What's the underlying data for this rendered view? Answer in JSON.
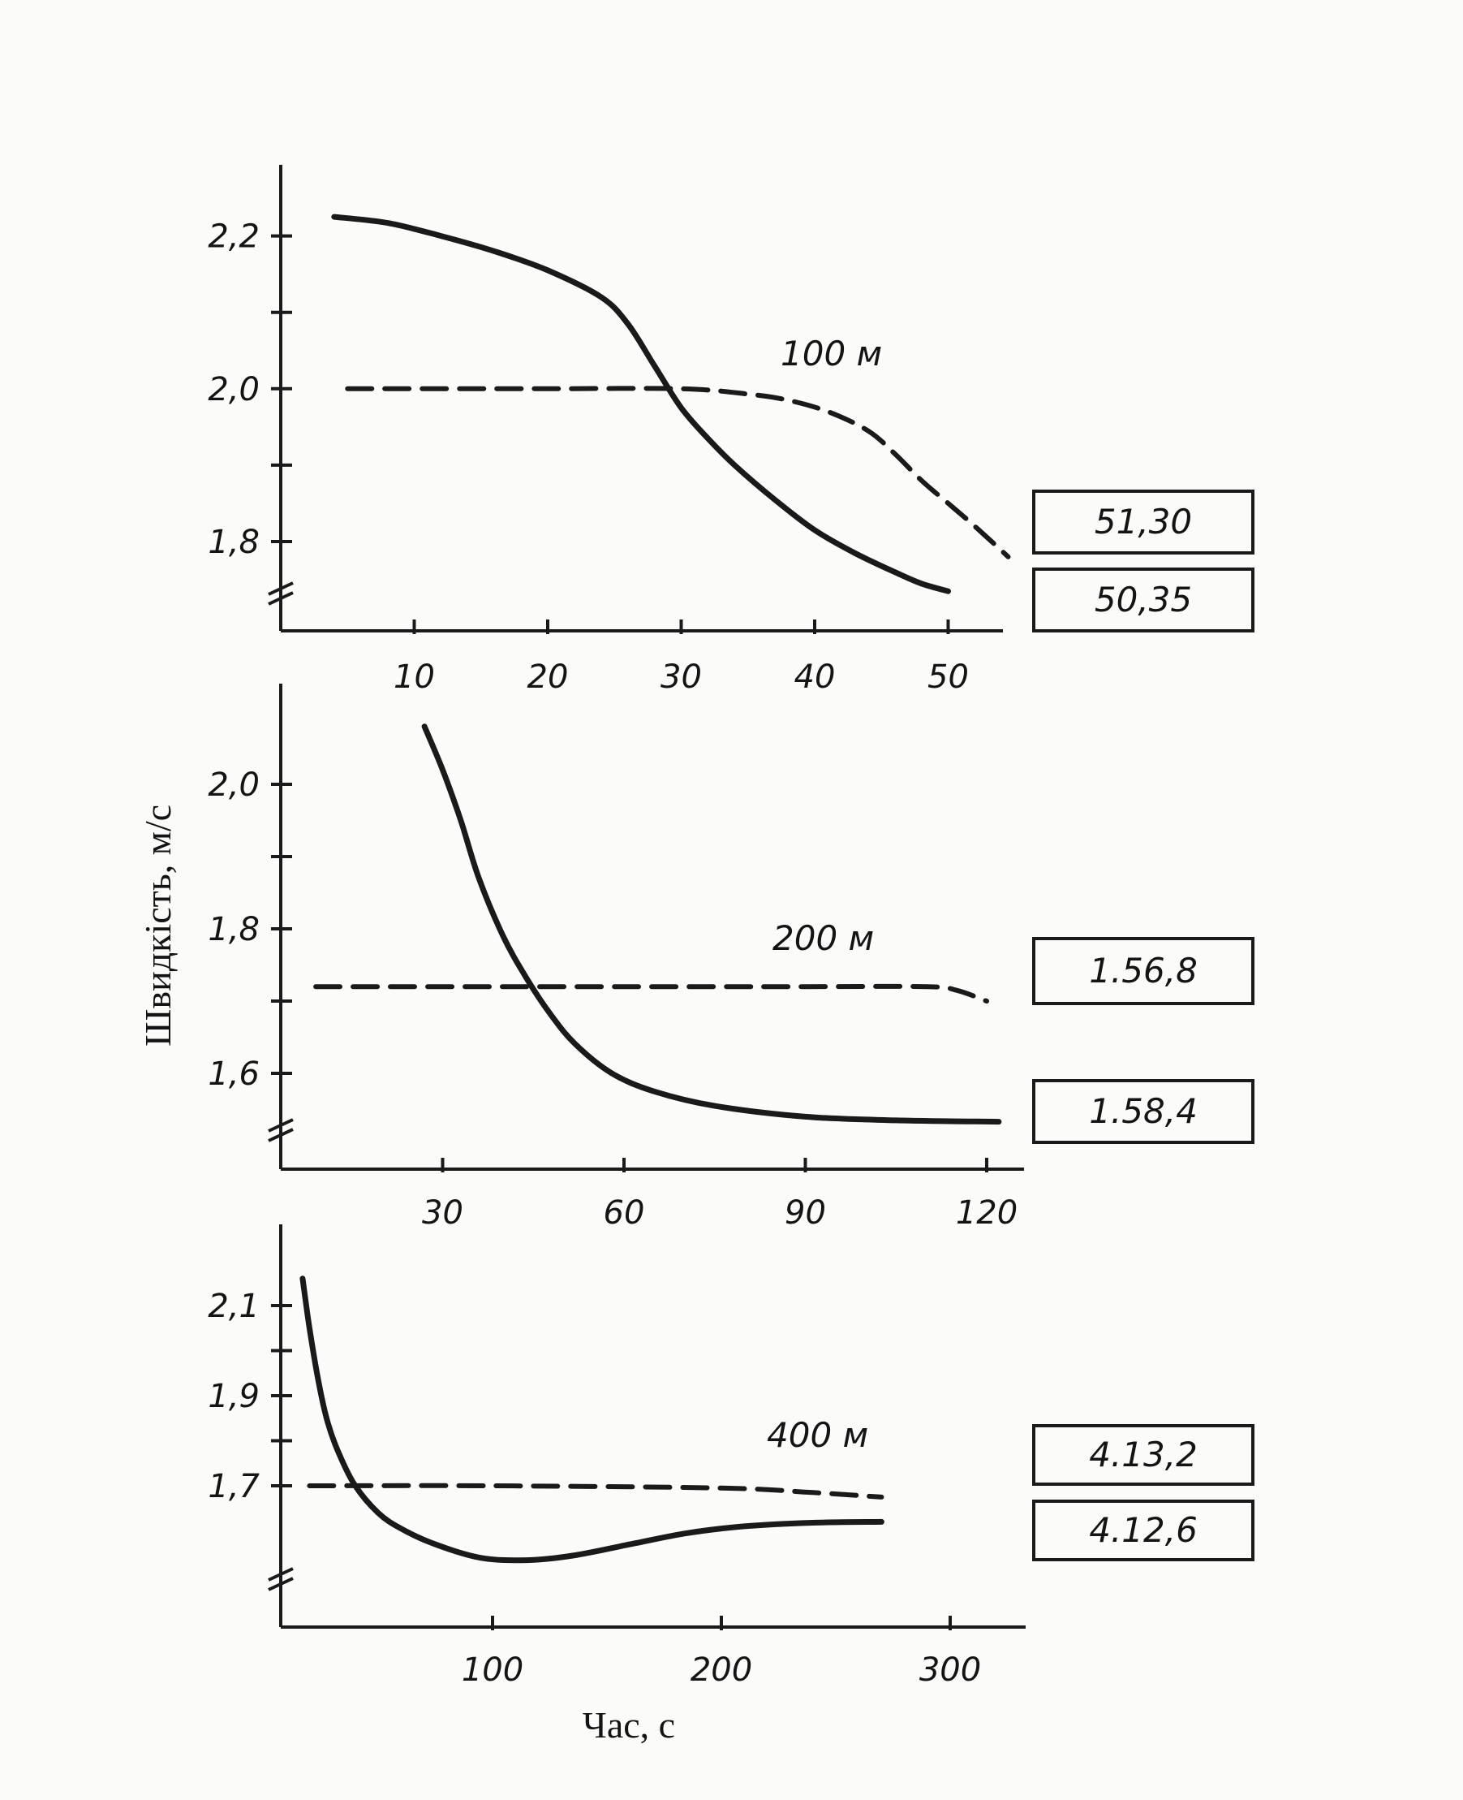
{
  "figure": {
    "ylabel": "Швидкість, м/с",
    "xlabel": "Час, с"
  },
  "chart_data": [
    {
      "type": "line",
      "label": "100 м",
      "xticks": [
        10,
        20,
        30,
        40,
        50
      ],
      "xtick_labels": [
        "10",
        "20",
        "30",
        "40",
        "50"
      ],
      "xlim": [
        0,
        55.5
      ],
      "yticks": [
        1.8,
        1.9,
        2.0,
        2.1,
        2.2
      ],
      "ytick_labels": [
        "1,8",
        "",
        "2,0",
        "",
        "2,2"
      ],
      "ylim": [
        1.68,
        2.29
      ],
      "axis_break": true,
      "series": [
        {
          "style": "solid",
          "result": "50,35",
          "x": [
            4,
            8,
            12,
            16,
            20,
            24,
            26,
            28,
            30,
            32,
            34,
            37,
            40,
            43,
            46,
            48,
            50
          ],
          "y": [
            2.225,
            2.217,
            2.2,
            2.18,
            2.155,
            2.12,
            2.085,
            2.03,
            1.975,
            1.935,
            1.9,
            1.855,
            1.815,
            1.785,
            1.76,
            1.745,
            1.735
          ]
        },
        {
          "style": "dashed",
          "result": "51,30",
          "x": [
            5,
            10,
            20,
            30,
            35,
            38,
            41,
            44,
            46,
            48,
            50,
            52,
            54.5
          ],
          "y": [
            2.0,
            2.0,
            2.0,
            2.0,
            1.993,
            1.985,
            1.97,
            1.945,
            1.915,
            1.88,
            1.85,
            1.82,
            1.78
          ]
        }
      ]
    },
    {
      "type": "line",
      "label": "200 м",
      "xticks": [
        30,
        60,
        90,
        120
      ],
      "xtick_labels": [
        "30",
        "60",
        "90",
        "120"
      ],
      "xlim": [
        0,
        135
      ],
      "yticks": [
        1.6,
        1.7,
        1.8,
        1.9,
        2.0
      ],
      "ytick_labels": [
        "1,6",
        "",
        "1,8",
        "",
        "2,0"
      ],
      "ylim": [
        1.52,
        2.12
      ],
      "axis_break": true,
      "series": [
        {
          "style": "solid",
          "result": "1.58,4",
          "x": [
            27,
            30,
            33,
            36,
            40,
            44,
            48,
            52,
            58,
            65,
            75,
            90,
            105,
            122
          ],
          "y": [
            2.08,
            2.02,
            1.95,
            1.87,
            1.79,
            1.73,
            1.68,
            1.64,
            1.6,
            1.575,
            1.555,
            1.54,
            1.535,
            1.533
          ]
        },
        {
          "style": "dashed",
          "result": "1.56,8",
          "x": [
            9,
            30,
            60,
            90,
            110,
            115,
            120
          ],
          "y": [
            1.72,
            1.72,
            1.72,
            1.72,
            1.72,
            1.715,
            1.7
          ]
        }
      ]
    },
    {
      "type": "line",
      "label": "400 м",
      "xticks": [
        100,
        200,
        300
      ],
      "xtick_labels": [
        "100",
        "200",
        "300"
      ],
      "xlim": [
        0,
        310
      ],
      "yticks": [
        1.7,
        1.8,
        1.9,
        2.0,
        2.1
      ],
      "ytick_labels": [
        "1,7",
        "",
        "1,9",
        "",
        "2,1"
      ],
      "ylim": [
        1.49,
        2.19
      ],
      "axis_break": true,
      "series": [
        {
          "style": "solid",
          "result": "4.12,6",
          "x": [
            17,
            20,
            24,
            28,
            33,
            40,
            50,
            60,
            75,
            95,
            115,
            135,
            160,
            185,
            210,
            240,
            270
          ],
          "y": [
            2.16,
            2.05,
            1.93,
            1.84,
            1.77,
            1.7,
            1.64,
            1.605,
            1.57,
            1.54,
            1.535,
            1.545,
            1.57,
            1.595,
            1.61,
            1.618,
            1.62
          ]
        },
        {
          "style": "dashed",
          "result": "4.13,2",
          "x": [
            20,
            100,
            200,
            240,
            270
          ],
          "y": [
            1.7,
            1.7,
            1.695,
            1.685,
            1.675
          ]
        }
      ]
    }
  ]
}
